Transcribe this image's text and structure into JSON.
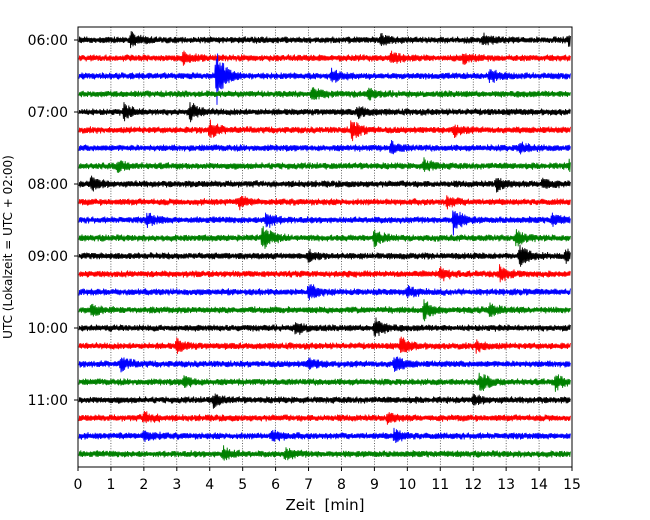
{
  "chart_data": {
    "type": "line",
    "subtype": "helicorder-seismogram",
    "title": "",
    "xlabel": "Zeit  [min]",
    "ylabel": "UTC (Lokalzeit = UTC + 02:00)",
    "xlim": [
      0,
      15
    ],
    "x_ticks": [
      "0",
      "1",
      "2",
      "3",
      "4",
      "5",
      "6",
      "7",
      "8",
      "9",
      "10",
      "11",
      "12",
      "13",
      "14",
      "15"
    ],
    "y_tick_labels": [
      "06:00",
      "07:00",
      "08:00",
      "09:00",
      "10:00",
      "11:00"
    ],
    "grid": "vertical dotted lines at every minute",
    "line_start_times": [
      "06:00",
      "06:15",
      "06:30",
      "06:45",
      "07:00",
      "07:15",
      "07:30",
      "07:45",
      "08:00",
      "08:15",
      "08:30",
      "08:45",
      "09:00",
      "09:15",
      "09:30",
      "09:45",
      "10:00",
      "10:15",
      "10:30",
      "10:45",
      "11:00",
      "11:15",
      "11:30",
      "11:45"
    ],
    "trace_colors": [
      "#000000",
      "#ff0000",
      "#0000ff",
      "#008000"
    ],
    "events": [
      {
        "line": 0,
        "minute": 1.6,
        "amplitude": 0.35
      },
      {
        "line": 0,
        "minute": 9.2,
        "amplitude": 0.3
      },
      {
        "line": 0,
        "minute": 12.3,
        "amplitude": 0.3
      },
      {
        "line": 0,
        "minute": 14.9,
        "amplitude": 0.3
      },
      {
        "line": 1,
        "minute": 3.2,
        "amplitude": 0.4
      },
      {
        "line": 1,
        "minute": 9.5,
        "amplitude": 0.3
      },
      {
        "line": 1,
        "minute": 11.7,
        "amplitude": 0.3
      },
      {
        "line": 2,
        "minute": 4.2,
        "amplitude": 1.6
      },
      {
        "line": 2,
        "minute": 7.7,
        "amplitude": 0.35
      },
      {
        "line": 2,
        "minute": 12.5,
        "amplitude": 0.35
      },
      {
        "line": 3,
        "minute": 7.1,
        "amplitude": 0.3
      },
      {
        "line": 3,
        "minute": 8.8,
        "amplitude": 0.3
      },
      {
        "line": 4,
        "minute": 1.4,
        "amplitude": 0.4
      },
      {
        "line": 4,
        "minute": 3.4,
        "amplitude": 0.5
      },
      {
        "line": 4,
        "minute": 8.5,
        "amplitude": 0.3
      },
      {
        "line": 5,
        "minute": 4.0,
        "amplitude": 0.45
      },
      {
        "line": 5,
        "minute": 8.3,
        "amplitude": 0.6
      },
      {
        "line": 5,
        "minute": 11.4,
        "amplitude": 0.3
      },
      {
        "line": 6,
        "minute": 9.5,
        "amplitude": 0.3
      },
      {
        "line": 6,
        "minute": 13.4,
        "amplitude": 0.3
      },
      {
        "line": 7,
        "minute": 1.2,
        "amplitude": 0.3
      },
      {
        "line": 7,
        "minute": 10.5,
        "amplitude": 0.35
      },
      {
        "line": 7,
        "minute": 14.9,
        "amplitude": 0.3
      },
      {
        "line": 8,
        "minute": 0.4,
        "amplitude": 0.45
      },
      {
        "line": 8,
        "minute": 12.7,
        "amplitude": 0.4
      },
      {
        "line": 8,
        "minute": 14.1,
        "amplitude": 0.3
      },
      {
        "line": 9,
        "minute": 4.9,
        "amplitude": 0.3
      },
      {
        "line": 9,
        "minute": 11.2,
        "amplitude": 0.3
      },
      {
        "line": 10,
        "minute": 2.1,
        "amplitude": 0.35
      },
      {
        "line": 10,
        "minute": 5.7,
        "amplitude": 0.5
      },
      {
        "line": 10,
        "minute": 11.4,
        "amplitude": 0.7
      },
      {
        "line": 10,
        "minute": 14.4,
        "amplitude": 0.3
      },
      {
        "line": 11,
        "minute": 5.6,
        "amplitude": 0.7
      },
      {
        "line": 11,
        "minute": 9.0,
        "amplitude": 0.4
      },
      {
        "line": 11,
        "minute": 13.3,
        "amplitude": 0.4
      },
      {
        "line": 12,
        "minute": 7.0,
        "amplitude": 0.3
      },
      {
        "line": 12,
        "minute": 13.4,
        "amplitude": 0.6
      },
      {
        "line": 12,
        "minute": 14.8,
        "amplitude": 0.3
      },
      {
        "line": 13,
        "minute": 11.0,
        "amplitude": 0.35
      },
      {
        "line": 13,
        "minute": 12.8,
        "amplitude": 0.4
      },
      {
        "line": 14,
        "minute": 7.0,
        "amplitude": 0.45
      },
      {
        "line": 14,
        "minute": 10.0,
        "amplitude": 0.3
      },
      {
        "line": 15,
        "minute": 0.4,
        "amplitude": 0.3
      },
      {
        "line": 15,
        "minute": 10.5,
        "amplitude": 0.5
      },
      {
        "line": 15,
        "minute": 12.5,
        "amplitude": 0.35
      },
      {
        "line": 16,
        "minute": 6.6,
        "amplitude": 0.35
      },
      {
        "line": 16,
        "minute": 9.0,
        "amplitude": 0.55
      },
      {
        "line": 17,
        "minute": 3.0,
        "amplitude": 0.35
      },
      {
        "line": 17,
        "minute": 9.8,
        "amplitude": 0.45
      },
      {
        "line": 17,
        "minute": 12.1,
        "amplitude": 0.3
      },
      {
        "line": 18,
        "minute": 1.3,
        "amplitude": 0.35
      },
      {
        "line": 18,
        "minute": 7.0,
        "amplitude": 0.3
      },
      {
        "line": 18,
        "minute": 9.6,
        "amplitude": 0.45
      },
      {
        "line": 19,
        "minute": 3.2,
        "amplitude": 0.3
      },
      {
        "line": 19,
        "minute": 12.2,
        "amplitude": 0.55
      },
      {
        "line": 19,
        "minute": 14.5,
        "amplitude": 0.4
      },
      {
        "line": 20,
        "minute": 4.1,
        "amplitude": 0.35
      },
      {
        "line": 20,
        "minute": 12.0,
        "amplitude": 0.3
      },
      {
        "line": 21,
        "minute": 2.0,
        "amplitude": 0.3
      },
      {
        "line": 21,
        "minute": 9.4,
        "amplitude": 0.3
      },
      {
        "line": 22,
        "minute": 2.0,
        "amplitude": 0.3
      },
      {
        "line": 22,
        "minute": 5.9,
        "amplitude": 0.3
      },
      {
        "line": 22,
        "minute": 9.6,
        "amplitude": 0.35
      },
      {
        "line": 23,
        "minute": 4.4,
        "amplitude": 0.35
      },
      {
        "line": 23,
        "minute": 6.3,
        "amplitude": 0.3
      }
    ]
  }
}
